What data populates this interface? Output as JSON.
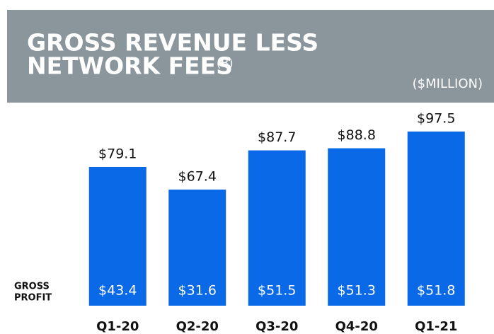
{
  "chart_data": {
    "type": "bar",
    "title": [
      "GROSS REVENUE LESS",
      "NETWORK FEES"
    ],
    "title_note": "(B)",
    "subtitle": "($MILLION)",
    "categories": [
      "Q1-20",
      "Q2-20",
      "Q3-20",
      "Q4-20",
      "Q1-21"
    ],
    "values": [
      79.1,
      67.4,
      87.7,
      88.8,
      97.5
    ],
    "value_labels": [
      "$79.1",
      "$67.4",
      "$87.7",
      "$88.8",
      "$97.5"
    ],
    "color": "#0a69e6",
    "ylim": [
      7.2,
      100
    ],
    "gross_profit": {
      "label": [
        "GROSS",
        "PROFIT"
      ],
      "values": [
        43.4,
        31.6,
        51.5,
        51.3,
        51.8
      ],
      "value_labels": [
        "$43.4",
        "$31.6",
        "$51.5",
        "$51.3",
        "$51.8"
      ]
    }
  }
}
